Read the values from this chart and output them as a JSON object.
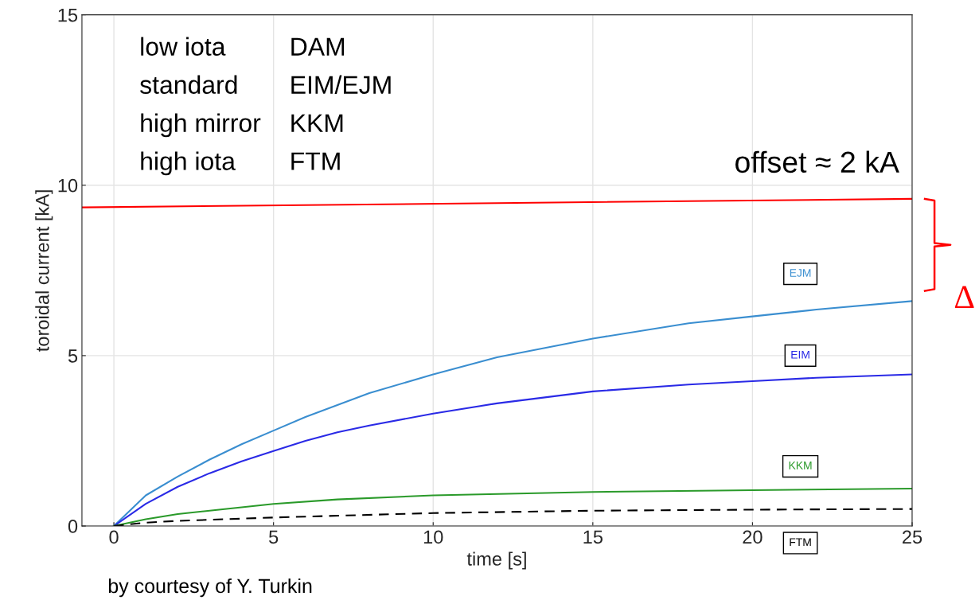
{
  "chart_data": {
    "type": "line",
    "xlabel": "time [s]",
    "ylabel": "toroidal current [kA]",
    "xlim": [
      -1,
      25
    ],
    "ylim": [
      0,
      15
    ],
    "xticks": [
      0,
      5,
      10,
      15,
      20,
      25
    ],
    "yticks": [
      0,
      5,
      10,
      15
    ],
    "grid": true,
    "marker": "none",
    "series": [
      {
        "name": "EJM",
        "color": "#3a8ed0",
        "x": [
          0,
          1,
          2,
          3,
          4,
          5,
          6,
          7,
          8,
          10,
          12,
          15,
          18,
          20,
          22,
          25
        ],
        "values": [
          0,
          0.9,
          1.45,
          1.95,
          2.4,
          2.8,
          3.2,
          3.55,
          3.9,
          4.45,
          4.95,
          5.5,
          5.95,
          6.15,
          6.35,
          6.6
        ]
      },
      {
        "name": "EIM",
        "color": "#2a2ae6",
        "x": [
          0,
          1,
          2,
          3,
          4,
          5,
          6,
          7,
          8,
          10,
          12,
          15,
          18,
          20,
          22,
          25
        ],
        "values": [
          0,
          0.65,
          1.15,
          1.55,
          1.9,
          2.2,
          2.5,
          2.75,
          2.95,
          3.3,
          3.6,
          3.95,
          4.15,
          4.25,
          4.35,
          4.45
        ]
      },
      {
        "name": "KKM",
        "color": "#2a9a2a",
        "x": [
          0,
          1,
          2,
          3,
          4,
          5,
          7,
          10,
          15,
          20,
          25
        ],
        "values": [
          0,
          0.2,
          0.35,
          0.45,
          0.55,
          0.65,
          0.78,
          0.9,
          1.0,
          1.05,
          1.1
        ]
      },
      {
        "name": "FTM",
        "color": "#000000",
        "line_style": "dashed",
        "x": [
          0,
          1,
          2,
          5,
          10,
          15,
          20,
          25
        ],
        "values": [
          0,
          0.1,
          0.15,
          0.25,
          0.38,
          0.45,
          0.48,
          0.5
        ]
      },
      {
        "color": "#ff0000",
        "x": [
          -1,
          25
        ],
        "values": [
          9.35,
          9.6
        ]
      }
    ],
    "annotations": [
      "low iota",
      "DAM",
      "standard",
      "EIM/EJM",
      "high mirror",
      "KKM",
      "high iota",
      "FTM",
      "offset ≈ 2 kA",
      "Δ",
      "by courtesy of Y. Turkin"
    ]
  }
}
